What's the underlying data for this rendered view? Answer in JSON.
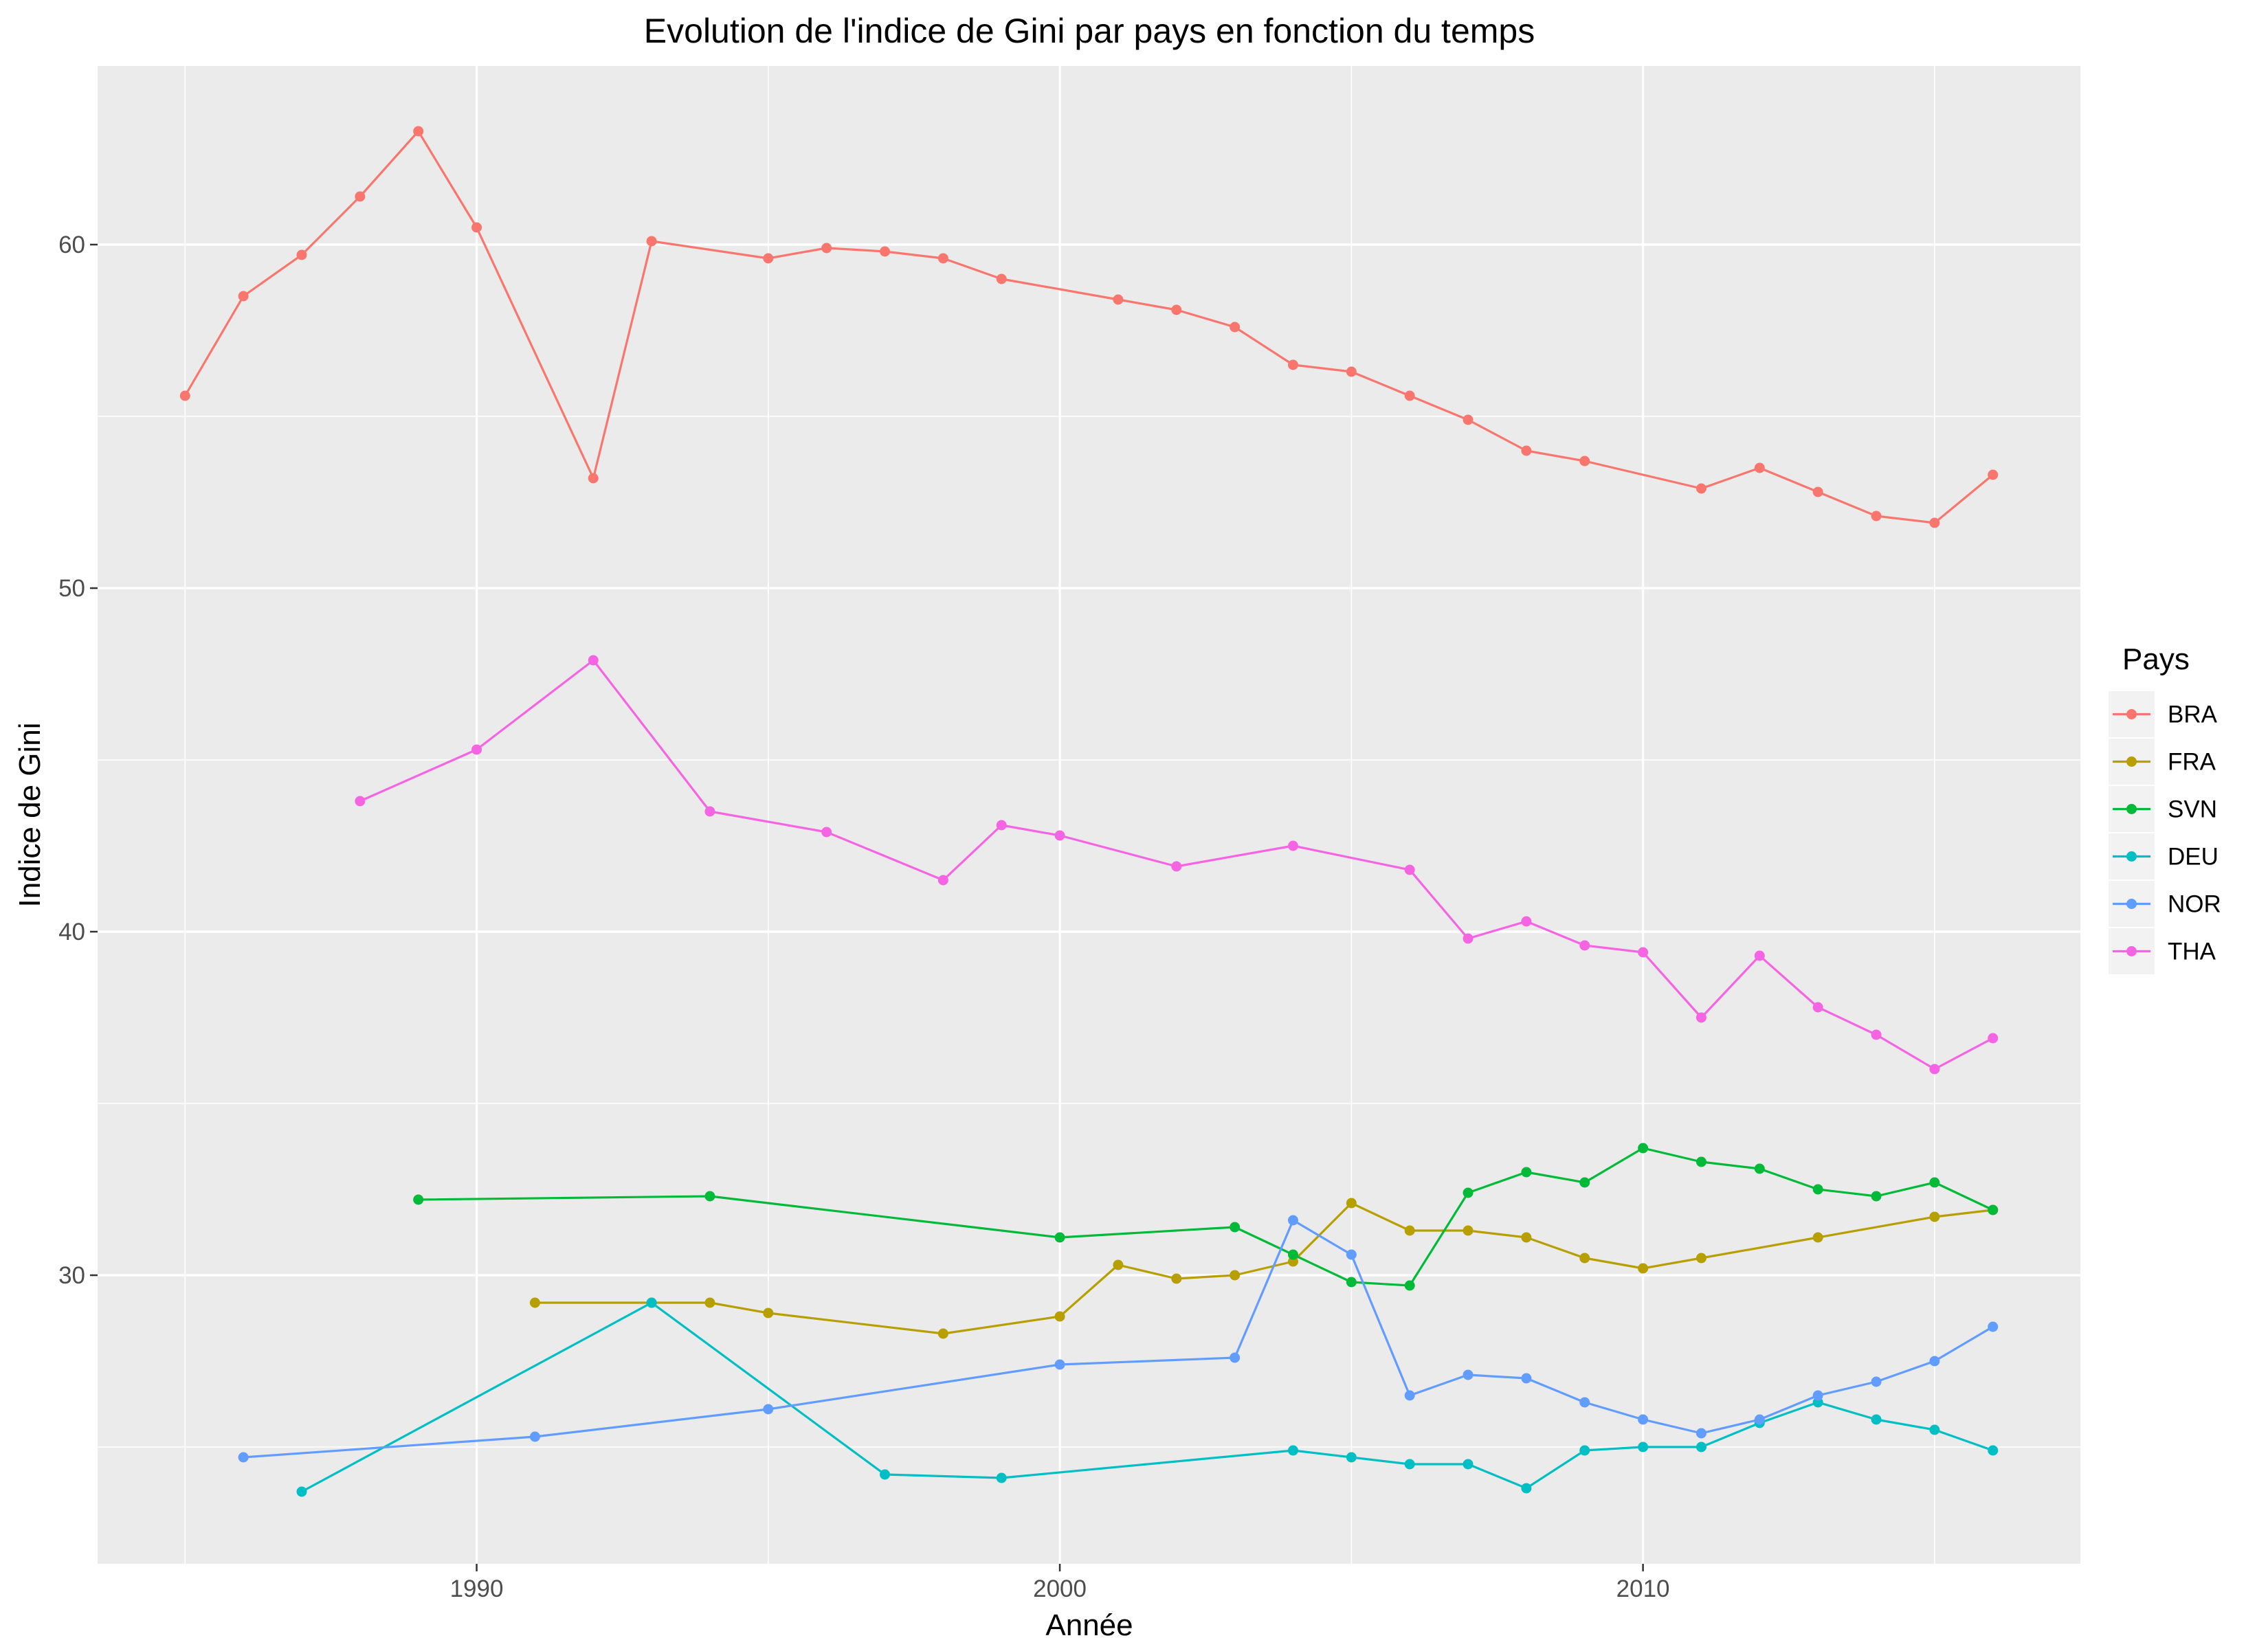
{
  "chart_data": {
    "type": "line",
    "title": "Evolution de l'indice de Gini par pays en fonction du temps",
    "xlabel": "Année",
    "ylabel": "Indice de Gini",
    "xlim": [
      1983.5,
      2017.5
    ],
    "ylim": [
      21.6,
      65.2
    ],
    "x_ticks": [
      1990,
      2000,
      2010
    ],
    "y_ticks": [
      30,
      40,
      50,
      60
    ],
    "x_minor": [
      1985,
      1995,
      2005,
      2015
    ],
    "y_minor": [
      25,
      35,
      45,
      55
    ],
    "grid": true,
    "legend_title": "Pays",
    "legend_position": "right",
    "series": [
      {
        "name": "BRA",
        "color": "#F8766D",
        "points": [
          [
            1985,
            55.6
          ],
          [
            1986,
            58.5
          ],
          [
            1987,
            59.7
          ],
          [
            1988,
            61.4
          ],
          [
            1989,
            63.3
          ],
          [
            1990,
            60.5
          ],
          [
            1992,
            53.2
          ],
          [
            1993,
            60.1
          ],
          [
            1995,
            59.6
          ],
          [
            1996,
            59.9
          ],
          [
            1997,
            59.8
          ],
          [
            1998,
            59.6
          ],
          [
            1999,
            59.0
          ],
          [
            2001,
            58.4
          ],
          [
            2002,
            58.1
          ],
          [
            2003,
            57.6
          ],
          [
            2004,
            56.5
          ],
          [
            2005,
            56.3
          ],
          [
            2006,
            55.6
          ],
          [
            2007,
            54.9
          ],
          [
            2008,
            54.0
          ],
          [
            2009,
            53.7
          ],
          [
            2011,
            52.9
          ],
          [
            2012,
            53.5
          ],
          [
            2013,
            52.8
          ],
          [
            2014,
            52.1
          ],
          [
            2015,
            51.9
          ],
          [
            2016,
            53.3
          ]
        ]
      },
      {
        "name": "FRA",
        "color": "#B79F00",
        "points": [
          [
            1991,
            29.2
          ],
          [
            1993,
            29.2
          ],
          [
            1994,
            29.2
          ],
          [
            1995,
            28.9
          ],
          [
            1998,
            28.3
          ],
          [
            2000,
            28.8
          ],
          [
            2001,
            30.3
          ],
          [
            2002,
            29.9
          ],
          [
            2003,
            30.0
          ],
          [
            2004,
            30.4
          ],
          [
            2005,
            32.1
          ],
          [
            2006,
            31.3
          ],
          [
            2007,
            31.3
          ],
          [
            2008,
            31.1
          ],
          [
            2009,
            30.5
          ],
          [
            2010,
            30.2
          ],
          [
            2011,
            30.5
          ],
          [
            2013,
            31.1
          ],
          [
            2015,
            31.7
          ],
          [
            2016,
            31.9
          ]
        ]
      },
      {
        "name": "SVN",
        "color": "#00BA38",
        "points": [
          [
            1989,
            32.2
          ],
          [
            1994,
            32.3
          ],
          [
            2000,
            31.1
          ],
          [
            2003,
            31.4
          ],
          [
            2004,
            30.6
          ],
          [
            2005,
            29.8
          ],
          [
            2006,
            29.7
          ],
          [
            2007,
            32.4
          ],
          [
            2008,
            33.0
          ],
          [
            2009,
            32.7
          ],
          [
            2010,
            33.7
          ],
          [
            2011,
            33.3
          ],
          [
            2012,
            33.1
          ],
          [
            2013,
            32.5
          ],
          [
            2014,
            32.3
          ],
          [
            2015,
            32.7
          ],
          [
            2016,
            31.9
          ]
        ]
      },
      {
        "name": "DEU",
        "color": "#00BFC4",
        "points": [
          [
            1987,
            23.7
          ],
          [
            1993,
            29.2
          ],
          [
            1997,
            24.2
          ],
          [
            1999,
            24.1
          ],
          [
            2004,
            24.9
          ],
          [
            2005,
            24.7
          ],
          [
            2006,
            24.5
          ],
          [
            2007,
            24.5
          ],
          [
            2008,
            23.8
          ],
          [
            2009,
            24.9
          ],
          [
            2010,
            25.0
          ],
          [
            2011,
            25.0
          ],
          [
            2012,
            25.7
          ],
          [
            2013,
            26.3
          ],
          [
            2014,
            25.8
          ],
          [
            2015,
            25.5
          ],
          [
            2016,
            24.9
          ]
        ]
      },
      {
        "name": "NOR",
        "color": "#619CFF",
        "points": [
          [
            1986,
            24.7
          ],
          [
            1991,
            25.3
          ],
          [
            1995,
            26.1
          ],
          [
            2000,
            27.4
          ],
          [
            2003,
            27.6
          ],
          [
            2004,
            31.6
          ],
          [
            2005,
            30.6
          ],
          [
            2006,
            26.5
          ],
          [
            2007,
            27.1
          ],
          [
            2008,
            27.0
          ],
          [
            2009,
            26.3
          ],
          [
            2010,
            25.8
          ],
          [
            2011,
            25.4
          ],
          [
            2012,
            25.8
          ],
          [
            2013,
            26.5
          ],
          [
            2014,
            26.9
          ],
          [
            2015,
            27.5
          ],
          [
            2016,
            28.5
          ]
        ]
      },
      {
        "name": "THA",
        "color": "#F564E3",
        "points": [
          [
            1988,
            43.8
          ],
          [
            1990,
            45.3
          ],
          [
            1992,
            47.9
          ],
          [
            1994,
            43.5
          ],
          [
            1996,
            42.9
          ],
          [
            1998,
            41.5
          ],
          [
            1999,
            43.1
          ],
          [
            2000,
            42.8
          ],
          [
            2002,
            41.9
          ],
          [
            2004,
            42.5
          ],
          [
            2006,
            41.8
          ],
          [
            2007,
            39.8
          ],
          [
            2008,
            40.3
          ],
          [
            2009,
            39.6
          ],
          [
            2010,
            39.4
          ],
          [
            2011,
            37.5
          ],
          [
            2012,
            39.3
          ],
          [
            2013,
            37.8
          ],
          [
            2014,
            37.0
          ],
          [
            2015,
            36.0
          ],
          [
            2016,
            36.9
          ]
        ]
      }
    ]
  }
}
